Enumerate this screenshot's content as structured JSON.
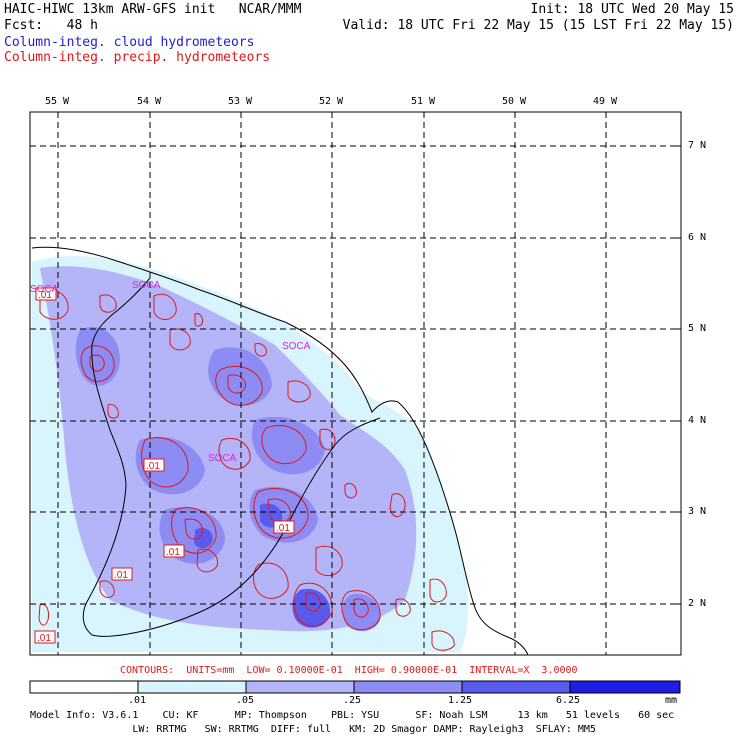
{
  "header": {
    "title_left": "HAIC-HIWC 13km ARW-GFS init   NCAR/MMM",
    "fcst": "Fcst:   48 h",
    "init": "Init: 18 UTC Wed 20 May 15",
    "valid": "Valid: 18 UTC Fri 22 May 15 (15 LST Fri 22 May 15)",
    "field_cloud": "Column-integ. cloud hydrometeors",
    "field_precip": "Column-integ. precip. hydrometeors"
  },
  "map": {
    "lon_labels": [
      "55 W",
      "54 W",
      "53 W",
      "52 W",
      "51 W",
      "50 W",
      "49 W"
    ],
    "lat_labels": [
      "7 N",
      "6 N",
      "5 N",
      "4 N",
      "3 N",
      "2 N"
    ],
    "place_labels": [
      "SOCA",
      "SOCA",
      "SOCA",
      "SOCA"
    ],
    "contour_labels": [
      ".01",
      ".01",
      ".01",
      ".01",
      ".01",
      ".01"
    ]
  },
  "contour_info": "CONTOURS:  UNITS=mm  LOW= 0.10000E-01  HIGH= 0.90000E-01  INTERVAL=X  3.0000",
  "colorbar": {
    "units": "mm",
    "tick_labels": [
      ".01",
      ".05",
      ".25",
      "1.25",
      "6.25"
    ],
    "colors": [
      "#ffffff",
      "#d8f4fc",
      "#b4b4f8",
      "#8c8cf4",
      "#5a5aee",
      "#1e1ee6"
    ]
  },
  "model_info": {
    "line1": "Model Info: V3.6.1    CU: KF      MP: Thompson    PBL: YSU      SF: Noah LSM     13 km   51 levels   60 sec",
    "line2": "                 LW: RRTMG   SW: RRTMG  DIFF: full   KM: 2D Smagor DAMP: Rayleigh3  SFLAY: MM5"
  }
}
